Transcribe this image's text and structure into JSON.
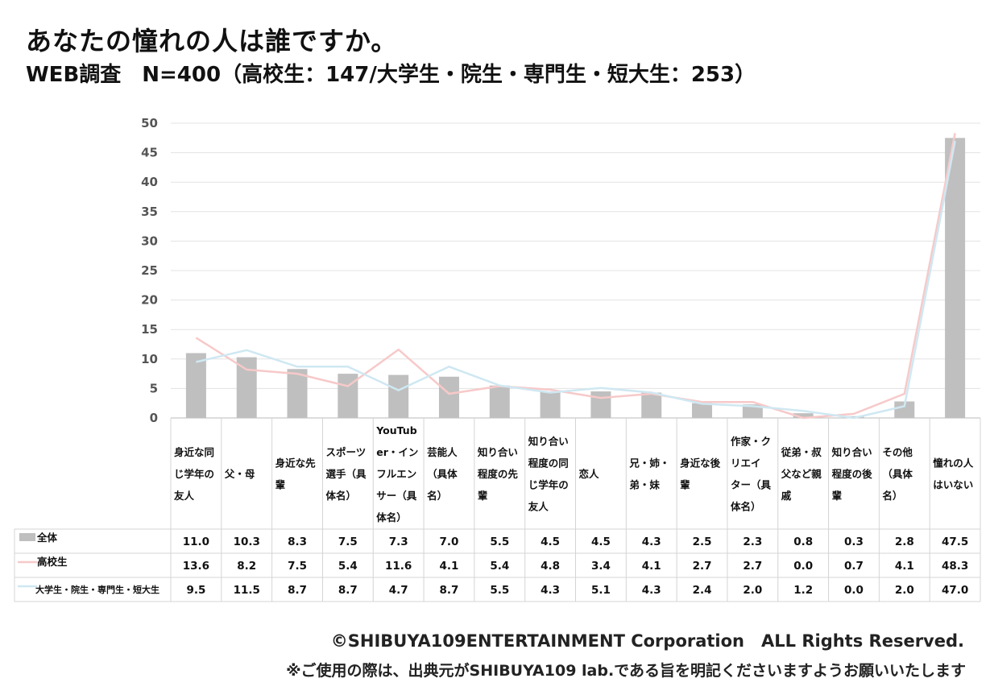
{
  "title": "あなたの憧れの人は誰ですか。",
  "subtitle": "WEB調査　N=400（高校生：147/大学生・院生・専門生・短大生：253）",
  "footer": {
    "copyright": "©SHIBUYA109ENTERTAINMENT Corporation　ALL Rights Reserved.",
    "note": "※ご使用の際は、出典元がSHIBUYA109 lab.である旨を明記くださいますようお願いいたします"
  },
  "chart_data": {
    "type": "bar",
    "ylim": [
      0,
      50
    ],
    "yticks": [
      0,
      5,
      10,
      15,
      20,
      25,
      30,
      35,
      40,
      45,
      50
    ],
    "grid": true,
    "categories": [
      "身近な同じ学年の友人",
      "父・母",
      "身近な先輩",
      "スポーツ選手（具体名）",
      "YouTuber・インフルエンサー（具体名）",
      "芸能人（具体名）",
      "知り合い程度の先輩",
      "知り合い程度の同じ学年の友人",
      "恋人",
      "兄・姉・弟・妹",
      "身近な後輩",
      "作家・クリエイター（具体名）",
      "従弟・叔父など親戚",
      "知り合い程度の後輩",
      "その他（具体名）",
      "憧れの人はいない"
    ],
    "category_lines": [
      [
        "身近な同",
        "じ学年の",
        "友人"
      ],
      [
        "父・母"
      ],
      [
        "身近な先",
        "輩"
      ],
      [
        "スポーツ",
        "選手（具",
        "体名）"
      ],
      [
        "YouTub",
        "er・イン",
        "フルエン",
        "サー（具",
        "体名）"
      ],
      [
        "芸能人",
        "（具体",
        "名）"
      ],
      [
        "知り合い",
        "程度の先",
        "輩"
      ],
      [
        "知り合い",
        "程度の同",
        "じ学年の",
        "友人"
      ],
      [
        "恋人"
      ],
      [
        "兄・姉・",
        "弟・妹"
      ],
      [
        "身近な後",
        "輩"
      ],
      [
        "作家・ク",
        "リエイ",
        "ター（具",
        "体名）"
      ],
      [
        "従弟・叔",
        "父など親",
        "戚"
      ],
      [
        "知り合い",
        "程度の後",
        "輩"
      ],
      [
        "その他",
        "（具体",
        "名）"
      ],
      [
        "憧れの人",
        "はいない"
      ]
    ],
    "series": [
      {
        "name": "全体",
        "kind": "bar",
        "color": "#bfbfbf",
        "values": [
          11.0,
          10.3,
          8.3,
          7.5,
          7.3,
          7.0,
          5.5,
          4.5,
          4.5,
          4.3,
          2.5,
          2.3,
          0.8,
          0.3,
          2.8,
          47.5
        ],
        "labels": [
          "11.0",
          "10.3",
          "8.3",
          "7.5",
          "7.3",
          "7.0",
          "5.5",
          "4.5",
          "4.5",
          "4.3",
          "2.5",
          "2.3",
          "0.8",
          "0.3",
          "2.8",
          "47.5"
        ]
      },
      {
        "name": "高校生",
        "kind": "line",
        "color": "#f7c9c9",
        "values": [
          13.6,
          8.2,
          7.5,
          5.4,
          11.6,
          4.1,
          5.4,
          4.8,
          3.4,
          4.1,
          2.7,
          2.7,
          0.0,
          0.7,
          4.1,
          48.3
        ],
        "labels": [
          "13.6",
          "8.2",
          "7.5",
          "5.4",
          "11.6",
          "4.1",
          "5.4",
          "4.8",
          "3.4",
          "4.1",
          "2.7",
          "2.7",
          "0.0",
          "0.7",
          "4.1",
          "48.3"
        ]
      },
      {
        "name": "大学生・院生・専門生・短大生",
        "kind": "line",
        "color": "#cfe8f2",
        "values": [
          9.5,
          11.5,
          8.7,
          8.7,
          4.7,
          8.7,
          5.5,
          4.3,
          5.1,
          4.3,
          2.4,
          2.0,
          1.2,
          0.0,
          2.0,
          47.0
        ],
        "labels": [
          "9.5",
          "11.5",
          "8.7",
          "8.7",
          "4.7",
          "8.7",
          "5.5",
          "4.3",
          "5.1",
          "4.3",
          "2.4",
          "2.0",
          "1.2",
          "0.0",
          "2.0",
          "47.0"
        ]
      }
    ]
  }
}
